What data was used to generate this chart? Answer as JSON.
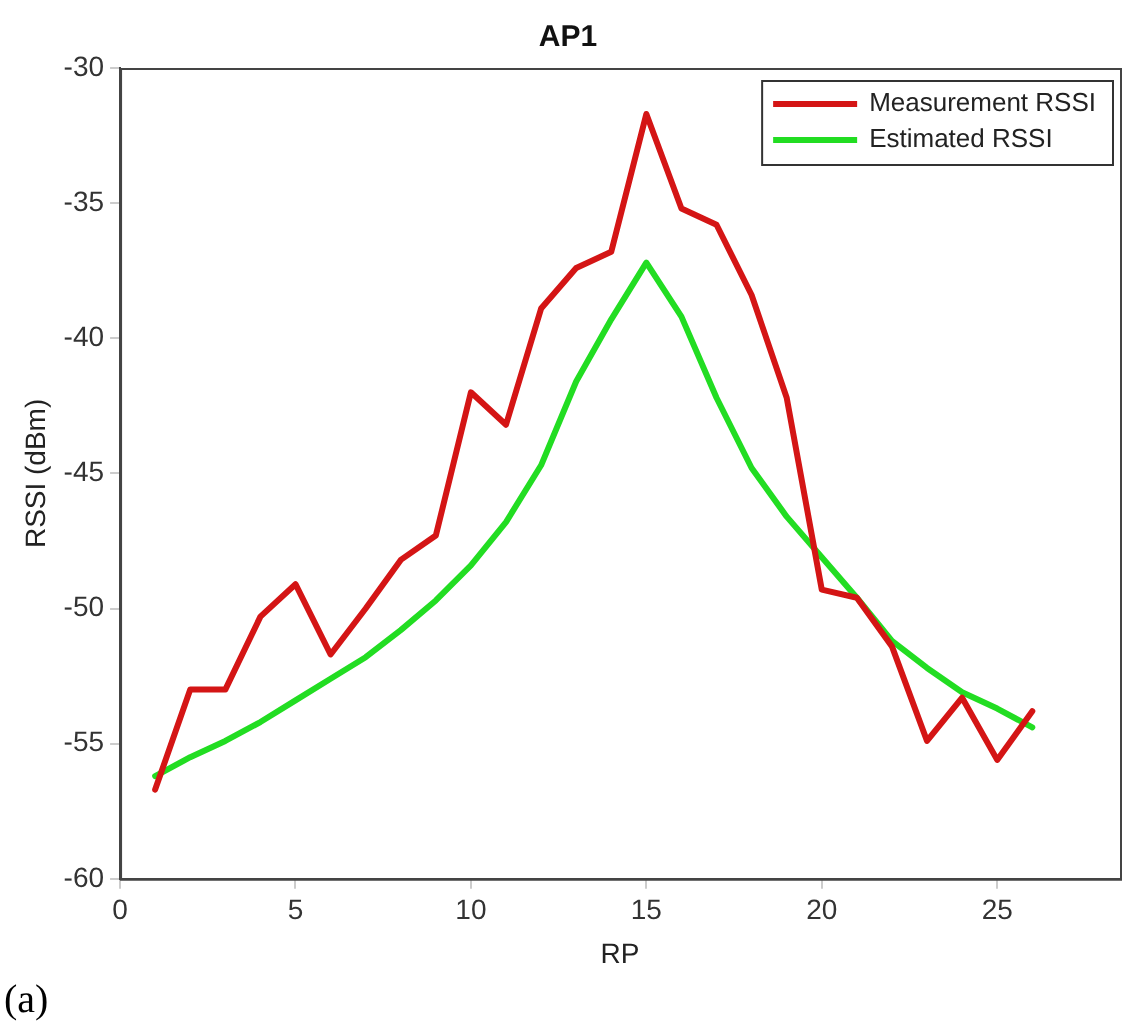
{
  "chart_data": {
    "type": "line",
    "title": "AP1",
    "xlabel": "RP",
    "ylabel": "RSSI (dBm)",
    "x": [
      1,
      2,
      3,
      4,
      5,
      6,
      7,
      8,
      9,
      10,
      11,
      12,
      13,
      14,
      15,
      16,
      17,
      18,
      19,
      20,
      21,
      22,
      23,
      24,
      25,
      26
    ],
    "series": [
      {
        "name": "Measurement RSSI",
        "color": "#d41515",
        "values": [
          -56.7,
          -53.0,
          -53.0,
          -50.3,
          -49.1,
          -51.7,
          -50.0,
          -48.2,
          -47.3,
          -42.0,
          -43.2,
          -38.9,
          -37.4,
          -36.8,
          -31.7,
          -35.2,
          -35.8,
          -38.4,
          -42.2,
          -49.3,
          -49.6,
          -51.4,
          -54.9,
          -53.3,
          -55.6,
          -53.8
        ]
      },
      {
        "name": "Estimated RSSI",
        "color": "#22dd22",
        "values": [
          -56.2,
          -55.5,
          -54.9,
          -54.2,
          -53.4,
          -52.6,
          -51.8,
          -50.8,
          -49.7,
          -48.4,
          -46.8,
          -44.7,
          -41.6,
          -39.3,
          -37.2,
          -39.2,
          -42.2,
          -44.8,
          -46.6,
          -48.1,
          -49.6,
          -51.2,
          -52.2,
          -53.1,
          -53.7,
          -54.4
        ]
      }
    ],
    "xlim": [
      0,
      28.5
    ],
    "xticks": [
      0,
      5,
      10,
      15,
      20,
      25
    ],
    "ylim": [
      -60,
      -30
    ],
    "yticks": [
      -60,
      -55,
      -50,
      -45,
      -40,
      -35,
      -30
    ],
    "grid": false,
    "legend": "top right",
    "marker": "none",
    "line_style": "solid",
    "annotations": [
      "(a)"
    ]
  }
}
